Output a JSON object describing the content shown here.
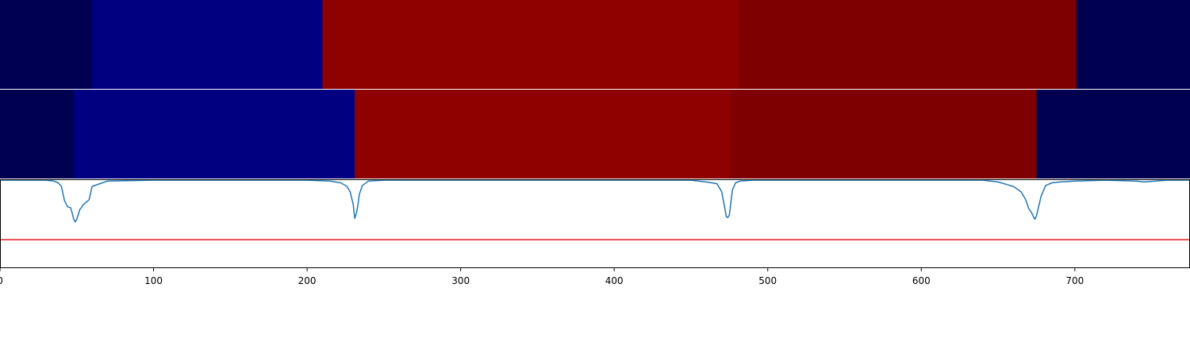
{
  "chart_data": [
    {
      "type": "heatmap",
      "xlim": [
        0,
        775
      ],
      "segments": [
        {
          "start": 0,
          "end": 60,
          "color": "#000050"
        },
        {
          "start": 60,
          "end": 210,
          "color": "#000080"
        },
        {
          "start": 210,
          "end": 481,
          "color": "#8f0000"
        },
        {
          "start": 481,
          "end": 701,
          "color": "#7f0000"
        },
        {
          "start": 701,
          "end": 775,
          "color": "#000050"
        }
      ]
    },
    {
      "type": "heatmap",
      "xlim": [
        0,
        775
      ],
      "segments": [
        {
          "start": 0,
          "end": 48,
          "color": "#000050"
        },
        {
          "start": 48,
          "end": 231,
          "color": "#000080"
        },
        {
          "start": 231,
          "end": 475,
          "color": "#8f0000"
        },
        {
          "start": 475,
          "end": 675,
          "color": "#7f0000"
        },
        {
          "start": 675,
          "end": 775,
          "color": "#000050"
        }
      ]
    },
    {
      "type": "line",
      "xlim": [
        0,
        775
      ],
      "ylim": [
        0,
        1
      ],
      "xticks": [
        0,
        100,
        200,
        300,
        400,
        500,
        600,
        700
      ],
      "threshold": {
        "value": 0.32,
        "color": "#e31a1c"
      },
      "series_color": "#1f77b4",
      "series": [
        {
          "x": [
            0,
            20,
            30,
            35,
            38,
            40,
            42,
            44,
            46,
            47,
            48,
            49,
            50,
            52,
            53,
            54,
            58,
            60,
            70,
            100,
            150,
            200,
            215,
            222,
            226,
            228,
            230,
            231,
            232,
            233,
            234,
            236,
            240,
            250,
            300,
            400,
            450,
            460,
            467,
            470,
            472,
            473,
            474,
            475,
            476,
            477,
            479,
            482,
            490,
            550,
            600,
            640,
            650,
            660,
            665,
            668,
            670,
            672,
            673,
            674,
            675,
            676,
            678,
            681,
            685,
            690,
            700,
            720,
            740,
            745,
            760,
            775
          ],
          "y": [
            0.99,
            0.99,
            0.99,
            0.98,
            0.96,
            0.92,
            0.76,
            0.69,
            0.68,
            0.62,
            0.55,
            0.52,
            0.55,
            0.66,
            0.68,
            0.71,
            0.77,
            0.92,
            0.98,
            0.99,
            0.99,
            0.99,
            0.98,
            0.96,
            0.92,
            0.86,
            0.72,
            0.56,
            0.61,
            0.7,
            0.83,
            0.93,
            0.98,
            0.99,
            0.99,
            0.99,
            0.99,
            0.97,
            0.95,
            0.86,
            0.68,
            0.58,
            0.57,
            0.6,
            0.74,
            0.88,
            0.96,
            0.98,
            0.99,
            0.99,
            0.99,
            0.99,
            0.97,
            0.92,
            0.86,
            0.77,
            0.67,
            0.62,
            0.58,
            0.55,
            0.59,
            0.66,
            0.81,
            0.93,
            0.96,
            0.97,
            0.98,
            0.99,
            0.98,
            0.97,
            0.99,
            0.99
          ]
        }
      ]
    }
  ]
}
